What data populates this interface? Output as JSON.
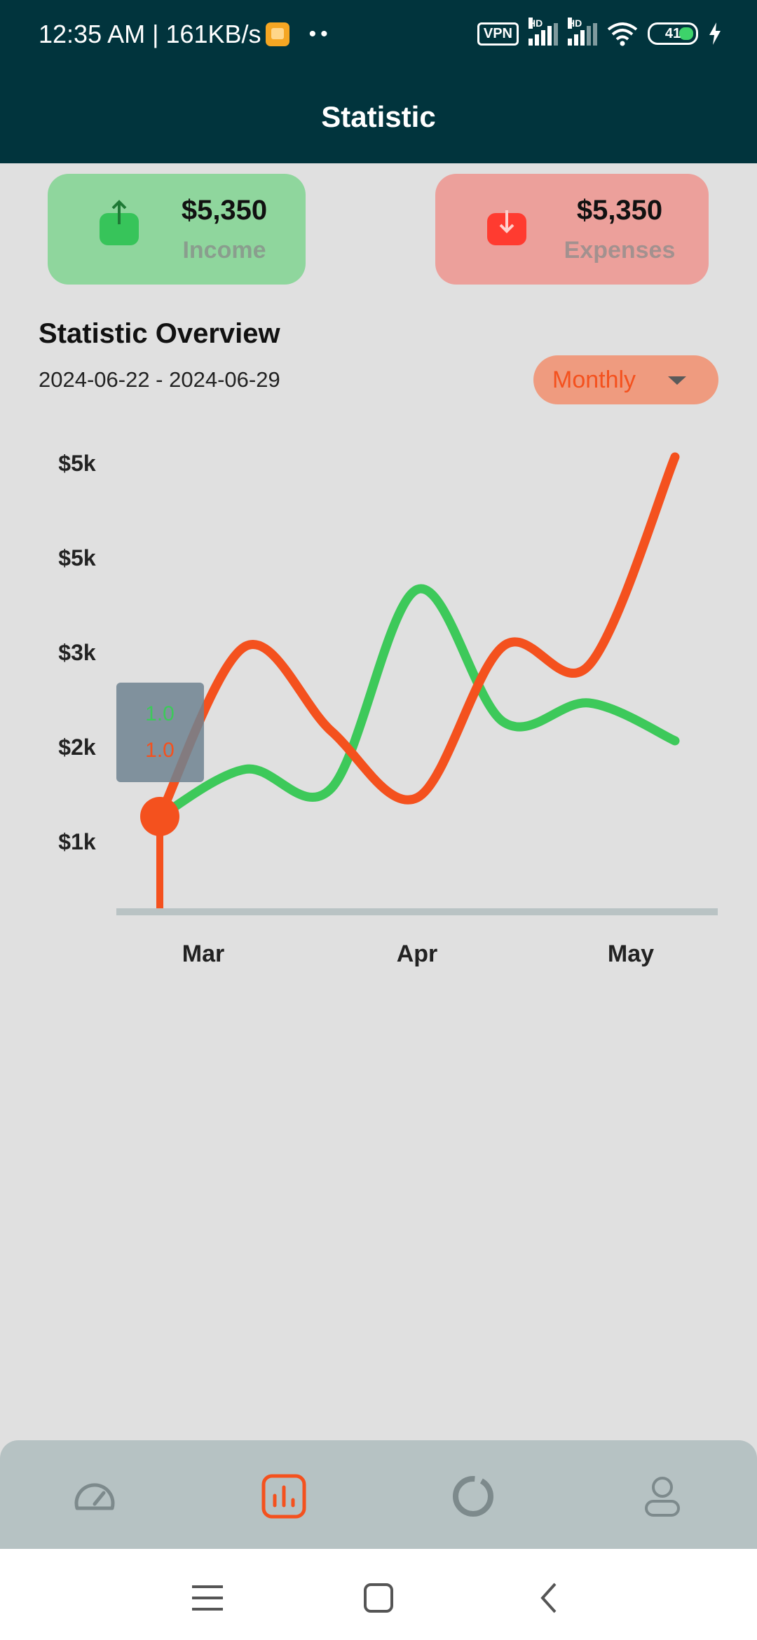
{
  "status_bar": {
    "time_speed": "12:35 AM | 161KB/s",
    "dots": "••",
    "vpn": "VPN",
    "hd1": "HD",
    "hd2": "HD",
    "battery": "41"
  },
  "header": {
    "title": "Statistic"
  },
  "income": {
    "amount": "$5,350",
    "label": "Income",
    "icon": "upload-icon",
    "color": "#8fd69d"
  },
  "expenses": {
    "amount": "$5,350",
    "label": "Expenses",
    "icon": "download-icon",
    "color": "#eca09b"
  },
  "overview": {
    "title": "Statistic Overview",
    "date_range": "2024-06-22 - 2024-06-29",
    "period": "Monthly"
  },
  "chart_data": {
    "type": "line",
    "x_labels": [
      "Mar",
      "Apr",
      "May"
    ],
    "y_tick_labels": [
      "$5k",
      "$5k",
      "$3k",
      "$2k",
      "$1k"
    ],
    "series": [
      {
        "color": "#3dc95a",
        "values": [
          1.0,
          1.5,
          1.3,
          3.4,
          2.0,
          2.2,
          1.8
        ]
      },
      {
        "color": "#f4511e",
        "values": [
          1.0,
          2.8,
          1.9,
          1.2,
          2.8,
          2.6,
          4.8
        ]
      }
    ],
    "tooltip": {
      "income_value": "1.0",
      "expense_value": "1.0"
    },
    "grid": false,
    "legend": "none"
  },
  "bottom_nav": {
    "items": [
      {
        "icon": "speedometer-icon",
        "active": false
      },
      {
        "icon": "bar-chart-icon",
        "active": true
      },
      {
        "icon": "donut-chart-icon",
        "active": false
      },
      {
        "icon": "profile-icon",
        "active": false
      }
    ]
  },
  "system_nav": {
    "icons": [
      "menu-icon",
      "home-icon",
      "back-icon"
    ]
  }
}
